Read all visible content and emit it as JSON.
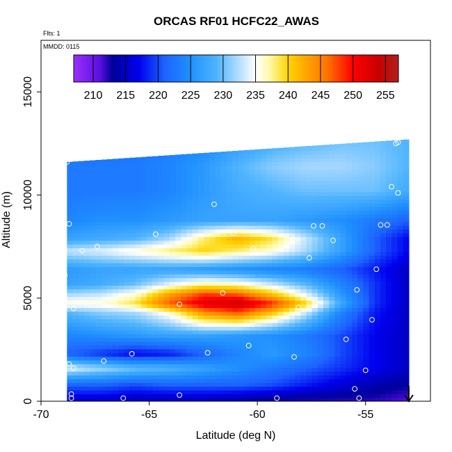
{
  "chart_data": {
    "type": "heatmap",
    "title": "ORCAS RF01 HCFC22_AWAS",
    "flights_note": "Flts: 1",
    "date_note": "MMDD: 0115",
    "xlabel": "Latitude (deg N)",
    "ylabel": "Altitude (m)",
    "xlim": [
      -70,
      -52
    ],
    "ylim": [
      0,
      17500
    ],
    "x_ticks": [
      -70,
      -65,
      -60,
      -55
    ],
    "y_ticks": [
      0,
      5000,
      10000,
      15000
    ],
    "grid": false,
    "colorbar": {
      "placement": "top-inside",
      "range": [
        207,
        257
      ],
      "ticks": [
        210,
        215,
        220,
        225,
        230,
        235,
        240,
        245,
        250,
        255
      ],
      "stops": [
        {
          "v": 207,
          "color": "#9b30ff"
        },
        {
          "v": 211,
          "color": "#5a10e0"
        },
        {
          "v": 213,
          "color": "#00009a"
        },
        {
          "v": 217,
          "color": "#0000ee"
        },
        {
          "v": 221,
          "color": "#1c64ff"
        },
        {
          "v": 225,
          "color": "#2090ff"
        },
        {
          "v": 229,
          "color": "#4fb4ff"
        },
        {
          "v": 232,
          "color": "#a6d8ff"
        },
        {
          "v": 235,
          "color": "#ffffff"
        },
        {
          "v": 237,
          "color": "#fffbb0"
        },
        {
          "v": 240,
          "color": "#ffd400"
        },
        {
          "v": 243,
          "color": "#ffa200"
        },
        {
          "v": 246,
          "color": "#ff7400"
        },
        {
          "v": 250,
          "color": "#ff0000"
        },
        {
          "v": 254,
          "color": "#c80000"
        },
        {
          "v": 257,
          "color": "#b02020"
        }
      ]
    },
    "field_lat_range": [
      -68.8,
      -53
    ],
    "field_alt_top_south": 11600,
    "field_alt_top_north": 12700,
    "layers": [
      {
        "alt": 0,
        "values": [
          215,
          215,
          214,
          214,
          214,
          213,
          212,
          212,
          212,
          212,
          211
        ]
      },
      {
        "alt": 800,
        "values": [
          221,
          221,
          220,
          221,
          221,
          221,
          220,
          218,
          216,
          214,
          213
        ]
      },
      {
        "alt": 1600,
        "values": [
          234,
          232,
          230,
          229,
          227,
          225,
          223,
          221,
          219,
          217,
          215
        ]
      },
      {
        "alt": 2300,
        "values": [
          221,
          219,
          217,
          218,
          221,
          224,
          226,
          224,
          220,
          217,
          215
        ]
      },
      {
        "alt": 3200,
        "values": [
          224,
          225,
          226,
          227,
          227,
          226,
          225,
          223,
          220,
          217,
          215
        ]
      },
      {
        "alt": 4300,
        "values": [
          229,
          231,
          232,
          236,
          244,
          247,
          241,
          233,
          224,
          218,
          215
        ]
      },
      {
        "alt": 4750,
        "values": [
          236,
          236,
          239,
          247,
          252,
          254,
          249,
          240,
          228,
          219,
          215
        ]
      },
      {
        "alt": 5200,
        "values": [
          232,
          233,
          236,
          243,
          248,
          247,
          241,
          234,
          226,
          219,
          215
        ]
      },
      {
        "alt": 5700,
        "values": [
          227,
          228,
          230,
          234,
          237,
          236,
          233,
          229,
          224,
          219,
          215
        ]
      },
      {
        "alt": 6400,
        "values": [
          226,
          227,
          227,
          227,
          226,
          225,
          224,
          223,
          221,
          218,
          215
        ]
      },
      {
        "alt": 7300,
        "values": [
          233,
          234,
          236,
          238,
          240,
          238,
          236,
          232,
          227,
          221,
          217
        ]
      },
      {
        "alt": 7900,
        "values": [
          227,
          228,
          229,
          232,
          238,
          242,
          239,
          233,
          227,
          221,
          217
        ]
      },
      {
        "alt": 8800,
        "values": [
          224,
          225,
          225,
          226,
          227,
          227,
          227,
          226,
          225,
          223,
          221
        ]
      },
      {
        "alt": 10200,
        "values": [
          223,
          223,
          223,
          224,
          226,
          228,
          229,
          230,
          230,
          230,
          228
        ]
      },
      {
        "alt": 11400,
        "values": [
          223,
          223,
          223,
          224,
          226,
          229,
          231,
          232,
          232,
          231,
          229
        ]
      },
      {
        "alt": 12700,
        "values": [
          222,
          222,
          222,
          223,
          224,
          226,
          228,
          229,
          230,
          230,
          229
        ]
      }
    ],
    "sample_points": [
      {
        "lat": -68.6,
        "alt": 150
      },
      {
        "lat": -68.6,
        "alt": 350
      },
      {
        "lat": -66.2,
        "alt": 150
      },
      {
        "lat": -63.6,
        "alt": 300
      },
      {
        "lat": -59.1,
        "alt": 150
      },
      {
        "lat": -55.3,
        "alt": 150
      },
      {
        "lat": -55.5,
        "alt": 600
      },
      {
        "lat": -68.7,
        "alt": 1800
      },
      {
        "lat": -68.5,
        "alt": 1600
      },
      {
        "lat": -67.1,
        "alt": 1950
      },
      {
        "lat": -65.8,
        "alt": 2300
      },
      {
        "lat": -62.3,
        "alt": 2350
      },
      {
        "lat": -60.4,
        "alt": 2700
      },
      {
        "lat": -58.3,
        "alt": 2150
      },
      {
        "lat": -55.0,
        "alt": 1500
      },
      {
        "lat": -55.9,
        "alt": 3000
      },
      {
        "lat": -54.7,
        "alt": 3950
      },
      {
        "lat": -68.5,
        "alt": 4500
      },
      {
        "lat": -66.7,
        "alt": 4750
      },
      {
        "lat": -65.3,
        "alt": 5200
      },
      {
        "lat": -63.6,
        "alt": 4700
      },
      {
        "lat": -61.6,
        "alt": 5250
      },
      {
        "lat": -58.1,
        "alt": 4550
      },
      {
        "lat": -55.4,
        "alt": 5400
      },
      {
        "lat": -68.9,
        "alt": 6100
      },
      {
        "lat": -54.5,
        "alt": 6400
      },
      {
        "lat": -68.1,
        "alt": 7300
      },
      {
        "lat": -67.4,
        "alt": 7500
      },
      {
        "lat": -64.2,
        "alt": 7550
      },
      {
        "lat": -64.7,
        "alt": 8100
      },
      {
        "lat": -61.1,
        "alt": 8150
      },
      {
        "lat": -60.2,
        "alt": 7400
      },
      {
        "lat": -57.6,
        "alt": 6950
      },
      {
        "lat": -57.4,
        "alt": 8500
      },
      {
        "lat": -57.0,
        "alt": 8500
      },
      {
        "lat": -56.5,
        "alt": 7800
      },
      {
        "lat": -54.3,
        "alt": 8550
      },
      {
        "lat": -54.0,
        "alt": 8550
      },
      {
        "lat": -62.0,
        "alt": 9550
      },
      {
        "lat": -68.7,
        "alt": 8600
      },
      {
        "lat": -68.8,
        "alt": 11600
      },
      {
        "lat": -66.2,
        "alt": 12150
      },
      {
        "lat": -53.8,
        "alt": 10400
      },
      {
        "lat": -53.5,
        "alt": 10100
      },
      {
        "lat": -53.6,
        "alt": 12500
      },
      {
        "lat": -53.5,
        "alt": 12550
      }
    ],
    "arrow_marker": {
      "lat": -53,
      "direction": "down"
    }
  }
}
